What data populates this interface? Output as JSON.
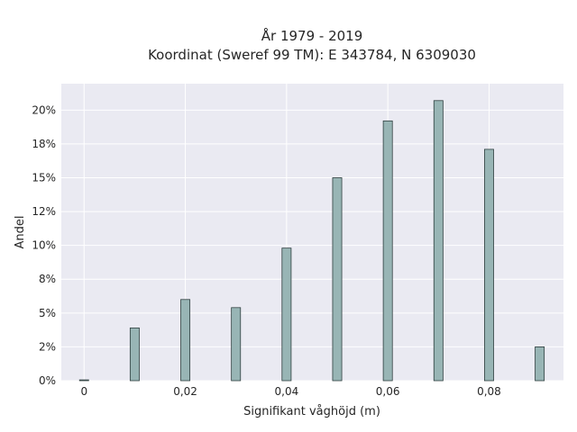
{
  "chart_data": {
    "type": "bar",
    "title_line1": "År 1979 - 2019",
    "title_line2": "Koordinat (Sweref 99 TM): E 343784, N 6309030",
    "xlabel": "Signifikant våghöjd (m)",
    "ylabel": "Andel",
    "xlim": [
      -0.0045,
      0.0947
    ],
    "ylim": [
      0,
      0.2195
    ],
    "x_ticks": [
      0,
      0.02,
      0.04,
      0.06,
      0.08
    ],
    "x_tick_labels": [
      "0",
      "0,02",
      "0,04",
      "0,06",
      "0,08"
    ],
    "y_ticks": [
      0,
      0.025,
      0.05,
      0.075,
      0.1,
      0.125,
      0.15,
      0.175,
      0.2
    ],
    "y_tick_labels": [
      "0%",
      "2%",
      "5%",
      "8%",
      "10%",
      "12%",
      "15%",
      "18%",
      "20%"
    ],
    "x": [
      0,
      0.01,
      0.02,
      0.03,
      0.04,
      0.05,
      0.06,
      0.07,
      0.08,
      0.09
    ],
    "values": [
      0.0006,
      0.039,
      0.06,
      0.054,
      0.098,
      0.15,
      0.192,
      0.207,
      0.171,
      0.025
    ],
    "bar_width": 0.0018,
    "grid": true,
    "colors": {
      "plot_background": "#eaeaf2",
      "grid": "#ffffff",
      "bar_fill": "#98b5b5",
      "bar_edge": "#2f3f3f"
    }
  }
}
